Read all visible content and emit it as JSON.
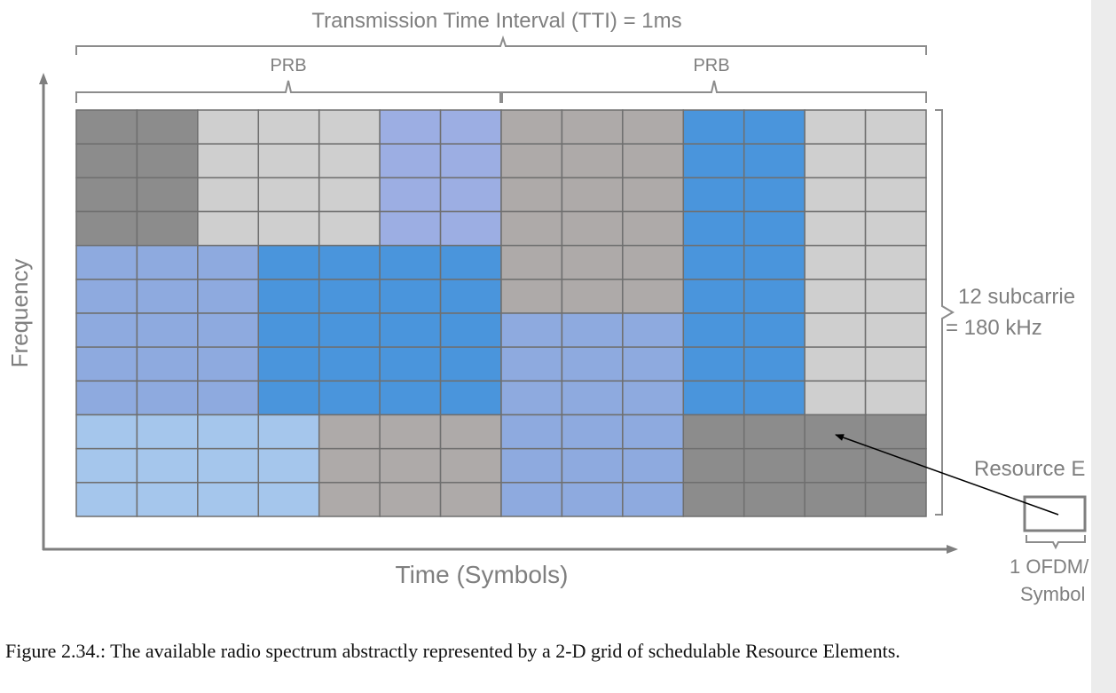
{
  "diagram": {
    "tti_label": "Transmission Time Interval (TTI) = 1ms",
    "prb_labels": [
      "PRB",
      "PRB"
    ],
    "y_axis_label": "Frequency",
    "x_axis_label": "Time (Symbols)",
    "subcarrier_label_line1": "12 subcarrie",
    "subcarrier_label_line2": "= 180 kHz",
    "resource_element_label": "Resource E",
    "ofdma_label_line1": "1 OFDM/",
    "ofdma_label_line2": "Symbol",
    "grid": {
      "columns": 14,
      "rows": 12,
      "colors": {
        "dark_gray": "#8c8c8c",
        "light_gray": "#cfcfcf",
        "medium_gray": "#aeaaa9",
        "lavender": "#9caee3",
        "periwinkle": "#8eaadf",
        "bright_blue": "#4a95dc",
        "pale_blue": "#a5c6ec"
      },
      "blocks": [
        {
          "c0": 0,
          "c1": 2,
          "r0": 0,
          "r1": 4,
          "color": "dark_gray"
        },
        {
          "c0": 2,
          "c1": 5,
          "r0": 0,
          "r1": 4,
          "color": "light_gray"
        },
        {
          "c0": 5,
          "c1": 7,
          "r0": 0,
          "r1": 4,
          "color": "lavender"
        },
        {
          "c0": 7,
          "c1": 10,
          "r0": 0,
          "r1": 6,
          "color": "medium_gray"
        },
        {
          "c0": 10,
          "c1": 12,
          "r0": 0,
          "r1": 9,
          "color": "bright_blue"
        },
        {
          "c0": 12,
          "c1": 14,
          "r0": 0,
          "r1": 9,
          "color": "light_gray"
        },
        {
          "c0": 0,
          "c1": 3,
          "r0": 4,
          "r1": 9,
          "color": "periwinkle"
        },
        {
          "c0": 3,
          "c1": 7,
          "r0": 4,
          "r1": 9,
          "color": "bright_blue"
        },
        {
          "c0": 7,
          "c1": 10,
          "r0": 6,
          "r1": 12,
          "color": "periwinkle"
        },
        {
          "c0": 0,
          "c1": 4,
          "r0": 9,
          "r1": 12,
          "color": "pale_blue"
        },
        {
          "c0": 4,
          "c1": 7,
          "r0": 9,
          "r1": 12,
          "color": "medium_gray"
        },
        {
          "c0": 10,
          "c1": 14,
          "r0": 9,
          "r1": 12,
          "color": "dark_gray"
        }
      ]
    }
  },
  "caption": "Figure 2.34.: The available radio spectrum abstractly represented by a 2-D grid of schedulable Resource Elements."
}
